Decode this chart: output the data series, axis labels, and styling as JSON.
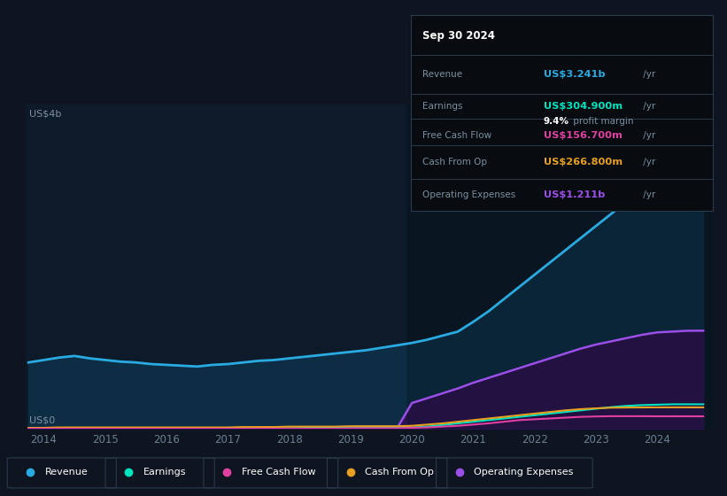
{
  "bg_color": "#0e1520",
  "plot_bg_color": "#0d1a2a",
  "years": [
    2013.75,
    2014.0,
    2014.25,
    2014.5,
    2014.75,
    2015.0,
    2015.25,
    2015.5,
    2015.75,
    2016.0,
    2016.25,
    2016.5,
    2016.75,
    2017.0,
    2017.25,
    2017.5,
    2017.75,
    2018.0,
    2018.25,
    2018.5,
    2018.75,
    2019.0,
    2019.25,
    2019.5,
    2019.75,
    2020.0,
    2020.25,
    2020.5,
    2020.75,
    2021.0,
    2021.25,
    2021.5,
    2021.75,
    2022.0,
    2022.25,
    2022.5,
    2022.75,
    2023.0,
    2023.25,
    2023.5,
    2023.75,
    2024.0,
    2024.25,
    2024.5,
    2024.75
  ],
  "revenue": [
    0.82,
    0.85,
    0.88,
    0.9,
    0.87,
    0.85,
    0.83,
    0.82,
    0.8,
    0.79,
    0.78,
    0.77,
    0.79,
    0.8,
    0.82,
    0.84,
    0.85,
    0.87,
    0.89,
    0.91,
    0.93,
    0.95,
    0.97,
    1.0,
    1.03,
    1.06,
    1.1,
    1.15,
    1.2,
    1.32,
    1.45,
    1.6,
    1.75,
    1.9,
    2.05,
    2.2,
    2.35,
    2.5,
    2.65,
    2.8,
    2.95,
    3.05,
    3.15,
    3.2,
    3.241
  ],
  "earnings": [
    0.01,
    0.01,
    0.01,
    0.01,
    0.01,
    0.01,
    0.01,
    0.01,
    0.01,
    0.01,
    0.01,
    0.01,
    0.01,
    0.01,
    0.01,
    0.01,
    0.01,
    0.01,
    0.015,
    0.015,
    0.015,
    0.02,
    0.02,
    0.02,
    0.02,
    0.02,
    0.03,
    0.05,
    0.07,
    0.09,
    0.11,
    0.13,
    0.15,
    0.17,
    0.19,
    0.21,
    0.23,
    0.25,
    0.27,
    0.285,
    0.295,
    0.3,
    0.305,
    0.305,
    0.3049
  ],
  "free_cash_flow": [
    0.005,
    0.005,
    0.005,
    0.005,
    0.005,
    0.005,
    0.005,
    0.005,
    0.005,
    0.005,
    0.005,
    0.005,
    0.005,
    0.005,
    0.005,
    0.005,
    0.005,
    0.005,
    0.005,
    0.005,
    0.005,
    0.01,
    0.01,
    0.01,
    0.01,
    0.015,
    0.02,
    0.03,
    0.04,
    0.055,
    0.07,
    0.09,
    0.11,
    0.12,
    0.13,
    0.14,
    0.15,
    0.155,
    0.158,
    0.158,
    0.158,
    0.157,
    0.157,
    0.157,
    0.1567
  ],
  "cash_from_op": [
    0.015,
    0.015,
    0.02,
    0.02,
    0.02,
    0.02,
    0.02,
    0.02,
    0.02,
    0.02,
    0.02,
    0.02,
    0.02,
    0.02,
    0.025,
    0.025,
    0.025,
    0.03,
    0.03,
    0.03,
    0.03,
    0.035,
    0.035,
    0.035,
    0.035,
    0.04,
    0.055,
    0.07,
    0.09,
    0.11,
    0.13,
    0.15,
    0.17,
    0.19,
    0.21,
    0.23,
    0.245,
    0.255,
    0.263,
    0.265,
    0.266,
    0.267,
    0.267,
    0.267,
    0.2668
  ],
  "op_expenses": [
    0.0,
    0.0,
    0.0,
    0.0,
    0.0,
    0.0,
    0.0,
    0.0,
    0.0,
    0.0,
    0.0,
    0.0,
    0.0,
    0.0,
    0.0,
    0.0,
    0.0,
    0.0,
    0.0,
    0.0,
    0.0,
    0.0,
    0.0,
    0.0,
    0.0,
    0.32,
    0.38,
    0.44,
    0.5,
    0.57,
    0.63,
    0.69,
    0.75,
    0.81,
    0.87,
    0.93,
    0.99,
    1.04,
    1.08,
    1.12,
    1.16,
    1.19,
    1.2,
    1.21,
    1.211
  ],
  "revenue_color": "#29abe2",
  "earnings_color": "#00e5c0",
  "fcf_color": "#e040a0",
  "cashop_color": "#e8a020",
  "opex_color": "#9b4fe8",
  "revenue_fill_color": "#0d2d45",
  "opex_fill_color": "#2a1550",
  "grid_color": "#1a3040",
  "tick_color": "#6a8090",
  "label_color": "#8090a0",
  "ylabel": "US$4b",
  "ylabel0": "US$0",
  "ylim_max": 4.0,
  "x_ticks": [
    2014,
    2015,
    2016,
    2017,
    2018,
    2019,
    2020,
    2021,
    2022,
    2023,
    2024
  ],
  "info_box": {
    "date": "Sep 30 2024",
    "rows": [
      {
        "label": "Revenue",
        "value": "US$3.241b",
        "suffix": " /yr",
        "color": "#29abe2",
        "subrow": null
      },
      {
        "label": "Earnings",
        "value": "US$304.900m",
        "suffix": " /yr",
        "color": "#00e5c0",
        "subrow": {
          "bold": "9.4%",
          "rest": " profit margin"
        }
      },
      {
        "label": "Free Cash Flow",
        "value": "US$156.700m",
        "suffix": " /yr",
        "color": "#e040a0",
        "subrow": null
      },
      {
        "label": "Cash From Op",
        "value": "US$266.800m",
        "suffix": " /yr",
        "color": "#e8a020",
        "subrow": null
      },
      {
        "label": "Operating Expenses",
        "value": "US$1.211b",
        "suffix": " /yr",
        "color": "#9b4fe8",
        "subrow": null
      }
    ]
  },
  "legend_items": [
    {
      "label": "Revenue",
      "color": "#29abe2"
    },
    {
      "label": "Earnings",
      "color": "#00e5c0"
    },
    {
      "label": "Free Cash Flow",
      "color": "#e040a0"
    },
    {
      "label": "Cash From Op",
      "color": "#e8a020"
    },
    {
      "label": "Operating Expenses",
      "color": "#9b4fe8"
    }
  ]
}
